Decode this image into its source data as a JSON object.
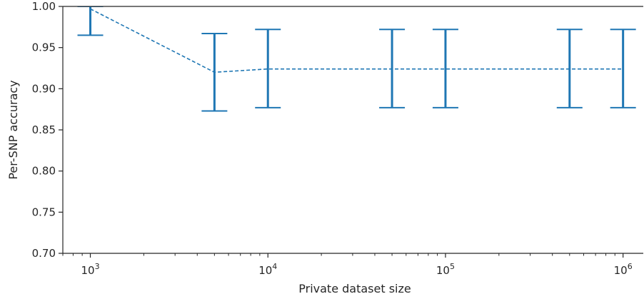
{
  "chart_data": {
    "type": "line",
    "title": "",
    "xlabel": "Private dataset size",
    "ylabel": "Per-SNP accuracy",
    "xscale": "log",
    "xlim": [
      700,
      1300000
    ],
    "ylim": [
      0.7,
      1.0
    ],
    "grid": false,
    "legend": "none",
    "line_style": "dashed",
    "series_color": "#1f77b4",
    "axis_color": "#262626",
    "yticks": [
      0.7,
      0.75,
      0.8,
      0.85,
      0.9,
      0.95,
      1.0
    ],
    "ytick_labels": [
      "0.70",
      "0.75",
      "0.80",
      "0.85",
      "0.90",
      "0.95",
      "1.00"
    ],
    "xticks": [
      1000,
      10000,
      100000,
      1000000
    ],
    "xtick_labels": [
      {
        "base": "10",
        "exp": "3"
      },
      {
        "base": "10",
        "exp": "4"
      },
      {
        "base": "10",
        "exp": "5"
      },
      {
        "base": "10",
        "exp": "6"
      }
    ],
    "series": [
      {
        "x": [
          1000,
          5000,
          10000,
          50000,
          100000,
          500000,
          1000000
        ],
        "y": [
          0.997,
          0.92,
          0.924,
          0.924,
          0.924,
          0.924,
          0.924
        ],
        "y_low": [
          0.965,
          0.873,
          0.877,
          0.877,
          0.877,
          0.877,
          0.877
        ],
        "y_high": [
          1.0,
          0.967,
          0.972,
          0.972,
          0.972,
          0.972,
          0.972
        ]
      }
    ]
  }
}
